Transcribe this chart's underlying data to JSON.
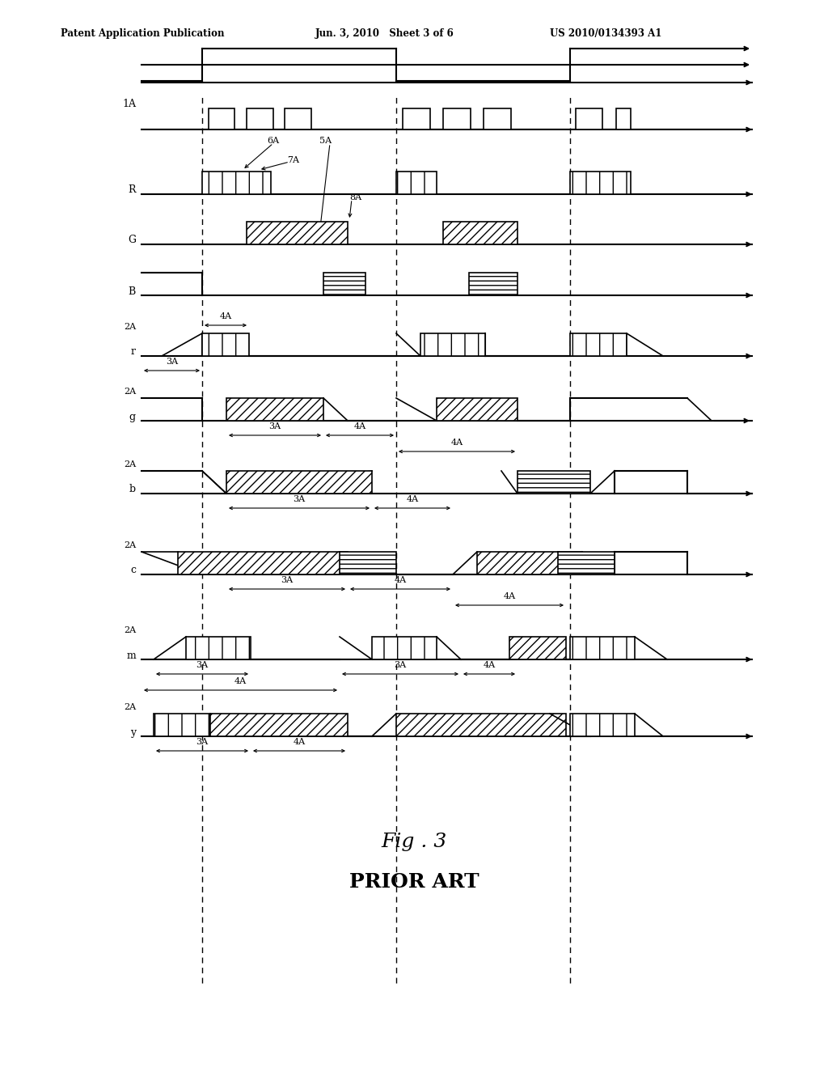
{
  "title_fig": "Fig . 3",
  "title_sub": "PRIOR ART",
  "header_left": "Patent Application Publication",
  "header_center": "Jun. 3, 2010   Sheet 3 of 6",
  "header_right": "US 2010/0134393 A1",
  "bg_color": "#ffffff"
}
